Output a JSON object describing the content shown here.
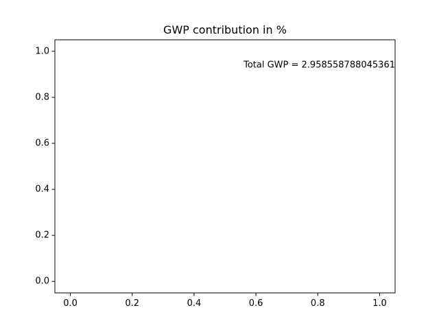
{
  "chart_data": {
    "type": "line",
    "title": "GWP contribution in %",
    "xlabel": "",
    "ylabel": "",
    "series": [],
    "xlim": [
      -0.05,
      1.05
    ],
    "ylim": [
      -0.05,
      1.05
    ],
    "xticks": [
      0.0,
      0.2,
      0.4,
      0.6,
      0.8,
      1.0
    ],
    "yticks": [
      0.0,
      0.2,
      0.4,
      0.6,
      0.8,
      1.0
    ],
    "xtick_labels": [
      "0.0",
      "0.2",
      "0.4",
      "0.6",
      "0.8",
      "1.0"
    ],
    "ytick_labels": [
      "0.0",
      "0.2",
      "0.4",
      "0.6",
      "0.8",
      "1.0"
    ],
    "grid": false,
    "legend": "none",
    "annotation": {
      "text": "Total GWP = 2.958558788045361",
      "x": 1.05,
      "y": 0.94
    }
  }
}
